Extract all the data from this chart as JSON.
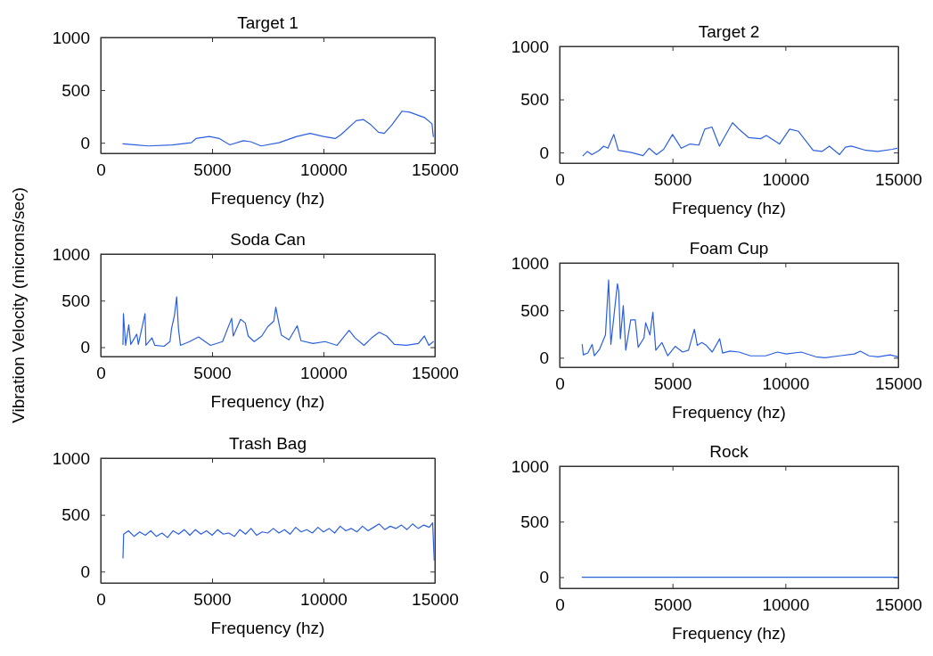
{
  "chart_data": [
    {
      "type": "line",
      "title": "Target 1",
      "xlabel": "Frequency (hz)",
      "xlim": [
        0,
        15000
      ],
      "xticks": [
        0,
        5000,
        10000,
        15000
      ],
      "ylim": [
        -100,
        1000
      ],
      "yticks": [
        0,
        500,
        1000
      ],
      "grid": false,
      "marker": "none",
      "line_style": "solid",
      "series": [
        {
          "color": "#2b5fe0",
          "x": [
            1000,
            1600,
            2130,
            3200,
            4070,
            4270,
            4870,
            5330,
            5800,
            6400,
            6730,
            7200,
            8000,
            8800,
            9400,
            10000,
            10530,
            10800,
            11470,
            11800,
            12130,
            12470,
            12730,
            13070,
            13530,
            13870,
            14530,
            14870,
            14930
          ],
          "values": [
            -10,
            -20,
            -30,
            -20,
            0,
            40,
            60,
            40,
            -20,
            20,
            10,
            -30,
            0,
            60,
            90,
            60,
            40,
            80,
            210,
            220,
            170,
            100,
            90,
            170,
            300,
            290,
            240,
            180,
            60
          ]
        }
      ]
    },
    {
      "type": "line",
      "title": "Target 2",
      "xlabel": "Frequency (hz)",
      "xlim": [
        0,
        15000
      ],
      "xticks": [
        0,
        5000,
        10000,
        15000
      ],
      "ylim": [
        -100,
        1000
      ],
      "yticks": [
        0,
        500,
        1000
      ],
      "grid": false,
      "marker": "none",
      "line_style": "solid",
      "series": [
        {
          "color": "#2b5fe0",
          "x": [
            1040,
            1230,
            1430,
            1750,
            1950,
            2140,
            2400,
            2600,
            3180,
            3700,
            3960,
            4290,
            4610,
            5000,
            5390,
            5780,
            6170,
            6430,
            6750,
            7080,
            7340,
            7660,
            7990,
            8380,
            8900,
            9160,
            9740,
            10190,
            10580,
            11230,
            11620,
            11950,
            12400,
            12660,
            12920,
            13570,
            14090,
            14740,
            14940
          ],
          "values": [
            -30,
            10,
            -20,
            20,
            60,
            40,
            170,
            20,
            0,
            -30,
            40,
            -20,
            30,
            170,
            40,
            80,
            70,
            220,
            240,
            60,
            160,
            280,
            210,
            140,
            130,
            160,
            80,
            220,
            200,
            20,
            10,
            60,
            -20,
            50,
            60,
            20,
            10,
            30,
            40
          ]
        }
      ]
    },
    {
      "type": "line",
      "title": "Soda Can",
      "xlabel": "Frequency (hz)",
      "ylabel": "Vibration Velocity (microns/sec)",
      "xlim": [
        0,
        15000
      ],
      "xticks": [
        0,
        5000,
        10000,
        15000
      ],
      "ylim": [
        -100,
        1000
      ],
      "yticks": [
        0,
        500,
        1000
      ],
      "grid": false,
      "marker": "none",
      "line_style": "solid",
      "series": [
        {
          "color": "#2b5fe0",
          "x": [
            1000,
            1020,
            1120,
            1260,
            1350,
            1620,
            1690,
            1990,
            2030,
            2300,
            2430,
            2840,
            3110,
            3180,
            3310,
            3410,
            3490,
            3580,
            3990,
            4390,
            4930,
            5470,
            5880,
            5950,
            6280,
            6490,
            6620,
            6890,
            7230,
            7500,
            7770,
            7860,
            7970,
            8110,
            8450,
            8820,
            8990,
            9530,
            10070,
            10610,
            11150,
            11420,
            11820,
            12160,
            12500,
            12840,
            13180,
            13720,
            14260,
            14530,
            14730,
            14930
          ],
          "values": [
            30,
            360,
            20,
            240,
            30,
            140,
            30,
            360,
            20,
            100,
            20,
            10,
            60,
            200,
            340,
            540,
            200,
            20,
            60,
            110,
            20,
            60,
            310,
            120,
            300,
            260,
            120,
            60,
            120,
            220,
            280,
            430,
            290,
            130,
            80,
            230,
            70,
            40,
            60,
            20,
            180,
            100,
            20,
            100,
            160,
            120,
            30,
            20,
            40,
            120,
            20,
            60
          ]
        }
      ]
    },
    {
      "type": "line",
      "title": "Foam Cup",
      "xlabel": "Frequency (hz)",
      "xlim": [
        0,
        15000
      ],
      "xticks": [
        0,
        5000,
        10000,
        15000
      ],
      "ylim": [
        -100,
        1000
      ],
      "yticks": [
        0,
        500,
        1000
      ],
      "grid": false,
      "marker": "none",
      "line_style": "solid",
      "series": [
        {
          "color": "#2b5fe0",
          "x": [
            1000,
            1050,
            1250,
            1440,
            1540,
            1770,
            2030,
            2170,
            2270,
            2560,
            2620,
            2690,
            2820,
            2930,
            3150,
            3350,
            3480,
            3740,
            3810,
            4000,
            4130,
            4260,
            4530,
            4790,
            5120,
            5450,
            5710,
            5970,
            6100,
            6300,
            6500,
            6760,
            7090,
            7220,
            7550,
            7940,
            8460,
            9120,
            9650,
            10040,
            10700,
            11350,
            11750,
            12400,
            13060,
            13320,
            13710,
            14110,
            14630,
            15000
          ],
          "values": [
            140,
            30,
            50,
            140,
            20,
            90,
            240,
            820,
            140,
            780,
            700,
            200,
            550,
            80,
            400,
            400,
            110,
            210,
            370,
            240,
            480,
            80,
            160,
            20,
            120,
            60,
            80,
            300,
            130,
            160,
            130,
            60,
            200,
            50,
            70,
            60,
            20,
            20,
            60,
            40,
            60,
            10,
            0,
            20,
            40,
            70,
            20,
            10,
            30,
            10
          ]
        }
      ]
    },
    {
      "type": "line",
      "title": "Trash Bag",
      "xlabel": "Frequency (hz)",
      "xlim": [
        0,
        15000
      ],
      "xticks": [
        0,
        5000,
        10000,
        15000
      ],
      "ylim": [
        -100,
        1000
      ],
      "yticks": [
        0,
        500,
        1000
      ],
      "grid": false,
      "marker": "none",
      "line_style": "solid",
      "series": [
        {
          "color": "#2b5fe0",
          "x": [
            1000,
            1030,
            1250,
            1500,
            1750,
            2000,
            2250,
            2500,
            2750,
            3000,
            3250,
            3500,
            3750,
            4000,
            4250,
            4500,
            4750,
            5000,
            5250,
            5500,
            5750,
            6000,
            6250,
            6500,
            6750,
            7000,
            7250,
            7500,
            7750,
            8000,
            8250,
            8500,
            8750,
            9000,
            9250,
            9500,
            9750,
            10000,
            10250,
            10500,
            10750,
            11000,
            11250,
            11500,
            11750,
            12000,
            12250,
            12500,
            12750,
            13000,
            13250,
            13500,
            13750,
            14000,
            14250,
            14500,
            14750,
            14900,
            14970
          ],
          "values": [
            120,
            330,
            360,
            310,
            350,
            320,
            360,
            310,
            340,
            300,
            360,
            330,
            370,
            320,
            370,
            330,
            360,
            320,
            370,
            330,
            340,
            310,
            370,
            330,
            380,
            320,
            350,
            340,
            380,
            340,
            370,
            330,
            390,
            350,
            370,
            340,
            390,
            350,
            380,
            340,
            400,
            360,
            380,
            350,
            400,
            360,
            390,
            420,
            370,
            400,
            380,
            410,
            370,
            420,
            380,
            410,
            390,
            430,
            100
          ]
        }
      ]
    },
    {
      "type": "line",
      "title": "Rock",
      "xlabel": "Frequency (hz)",
      "xlim": [
        0,
        15000
      ],
      "xticks": [
        0,
        5000,
        10000,
        15000
      ],
      "ylim": [
        -100,
        1000
      ],
      "yticks": [
        0,
        500,
        1000
      ],
      "grid": false,
      "marker": "none",
      "line_style": "solid",
      "series": [
        {
          "color": "#2b5fe0",
          "x": [
            1000,
            5000,
            10000,
            15000
          ],
          "values": [
            0,
            0,
            0,
            0
          ]
        }
      ]
    }
  ]
}
